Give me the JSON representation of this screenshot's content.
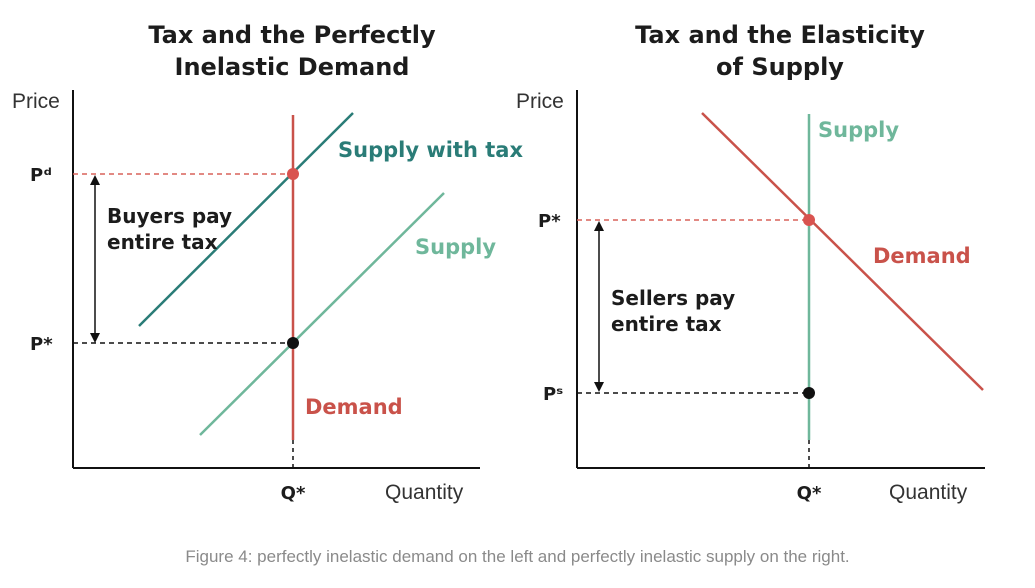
{
  "colors": {
    "teal_dark": "#2a7c77",
    "teal_light": "#6fb79b",
    "red": "#c9524a",
    "black": "#111111"
  },
  "left": {
    "title_line1": "Tax and the Perfectly",
    "title_line2": "Inelastic Demand",
    "y_axis": "Price",
    "x_axis": "Quantity",
    "tick_pd": "Pᵈ",
    "tick_pstar": "P*",
    "tick_qstar": "Q*",
    "supply_with_tax": "Supply with tax",
    "supply": "Supply",
    "demand": "Demand",
    "annot_line1": "Buyers pay",
    "annot_line2": "entire tax"
  },
  "right": {
    "title_line1": "Tax and the Elasticity",
    "title_line2": "of Supply",
    "y_axis": "Price",
    "x_axis": "Quantity",
    "tick_pstar": "P*",
    "tick_ps": "Pˢ",
    "tick_qstar": "Q*",
    "supply": "Supply",
    "demand": "Demand",
    "annot_line1": "Sellers pay",
    "annot_line2": "entire tax"
  },
  "caption": "Figure 4: perfectly inelastic demand on the left and perfectly inelastic supply on the right."
}
